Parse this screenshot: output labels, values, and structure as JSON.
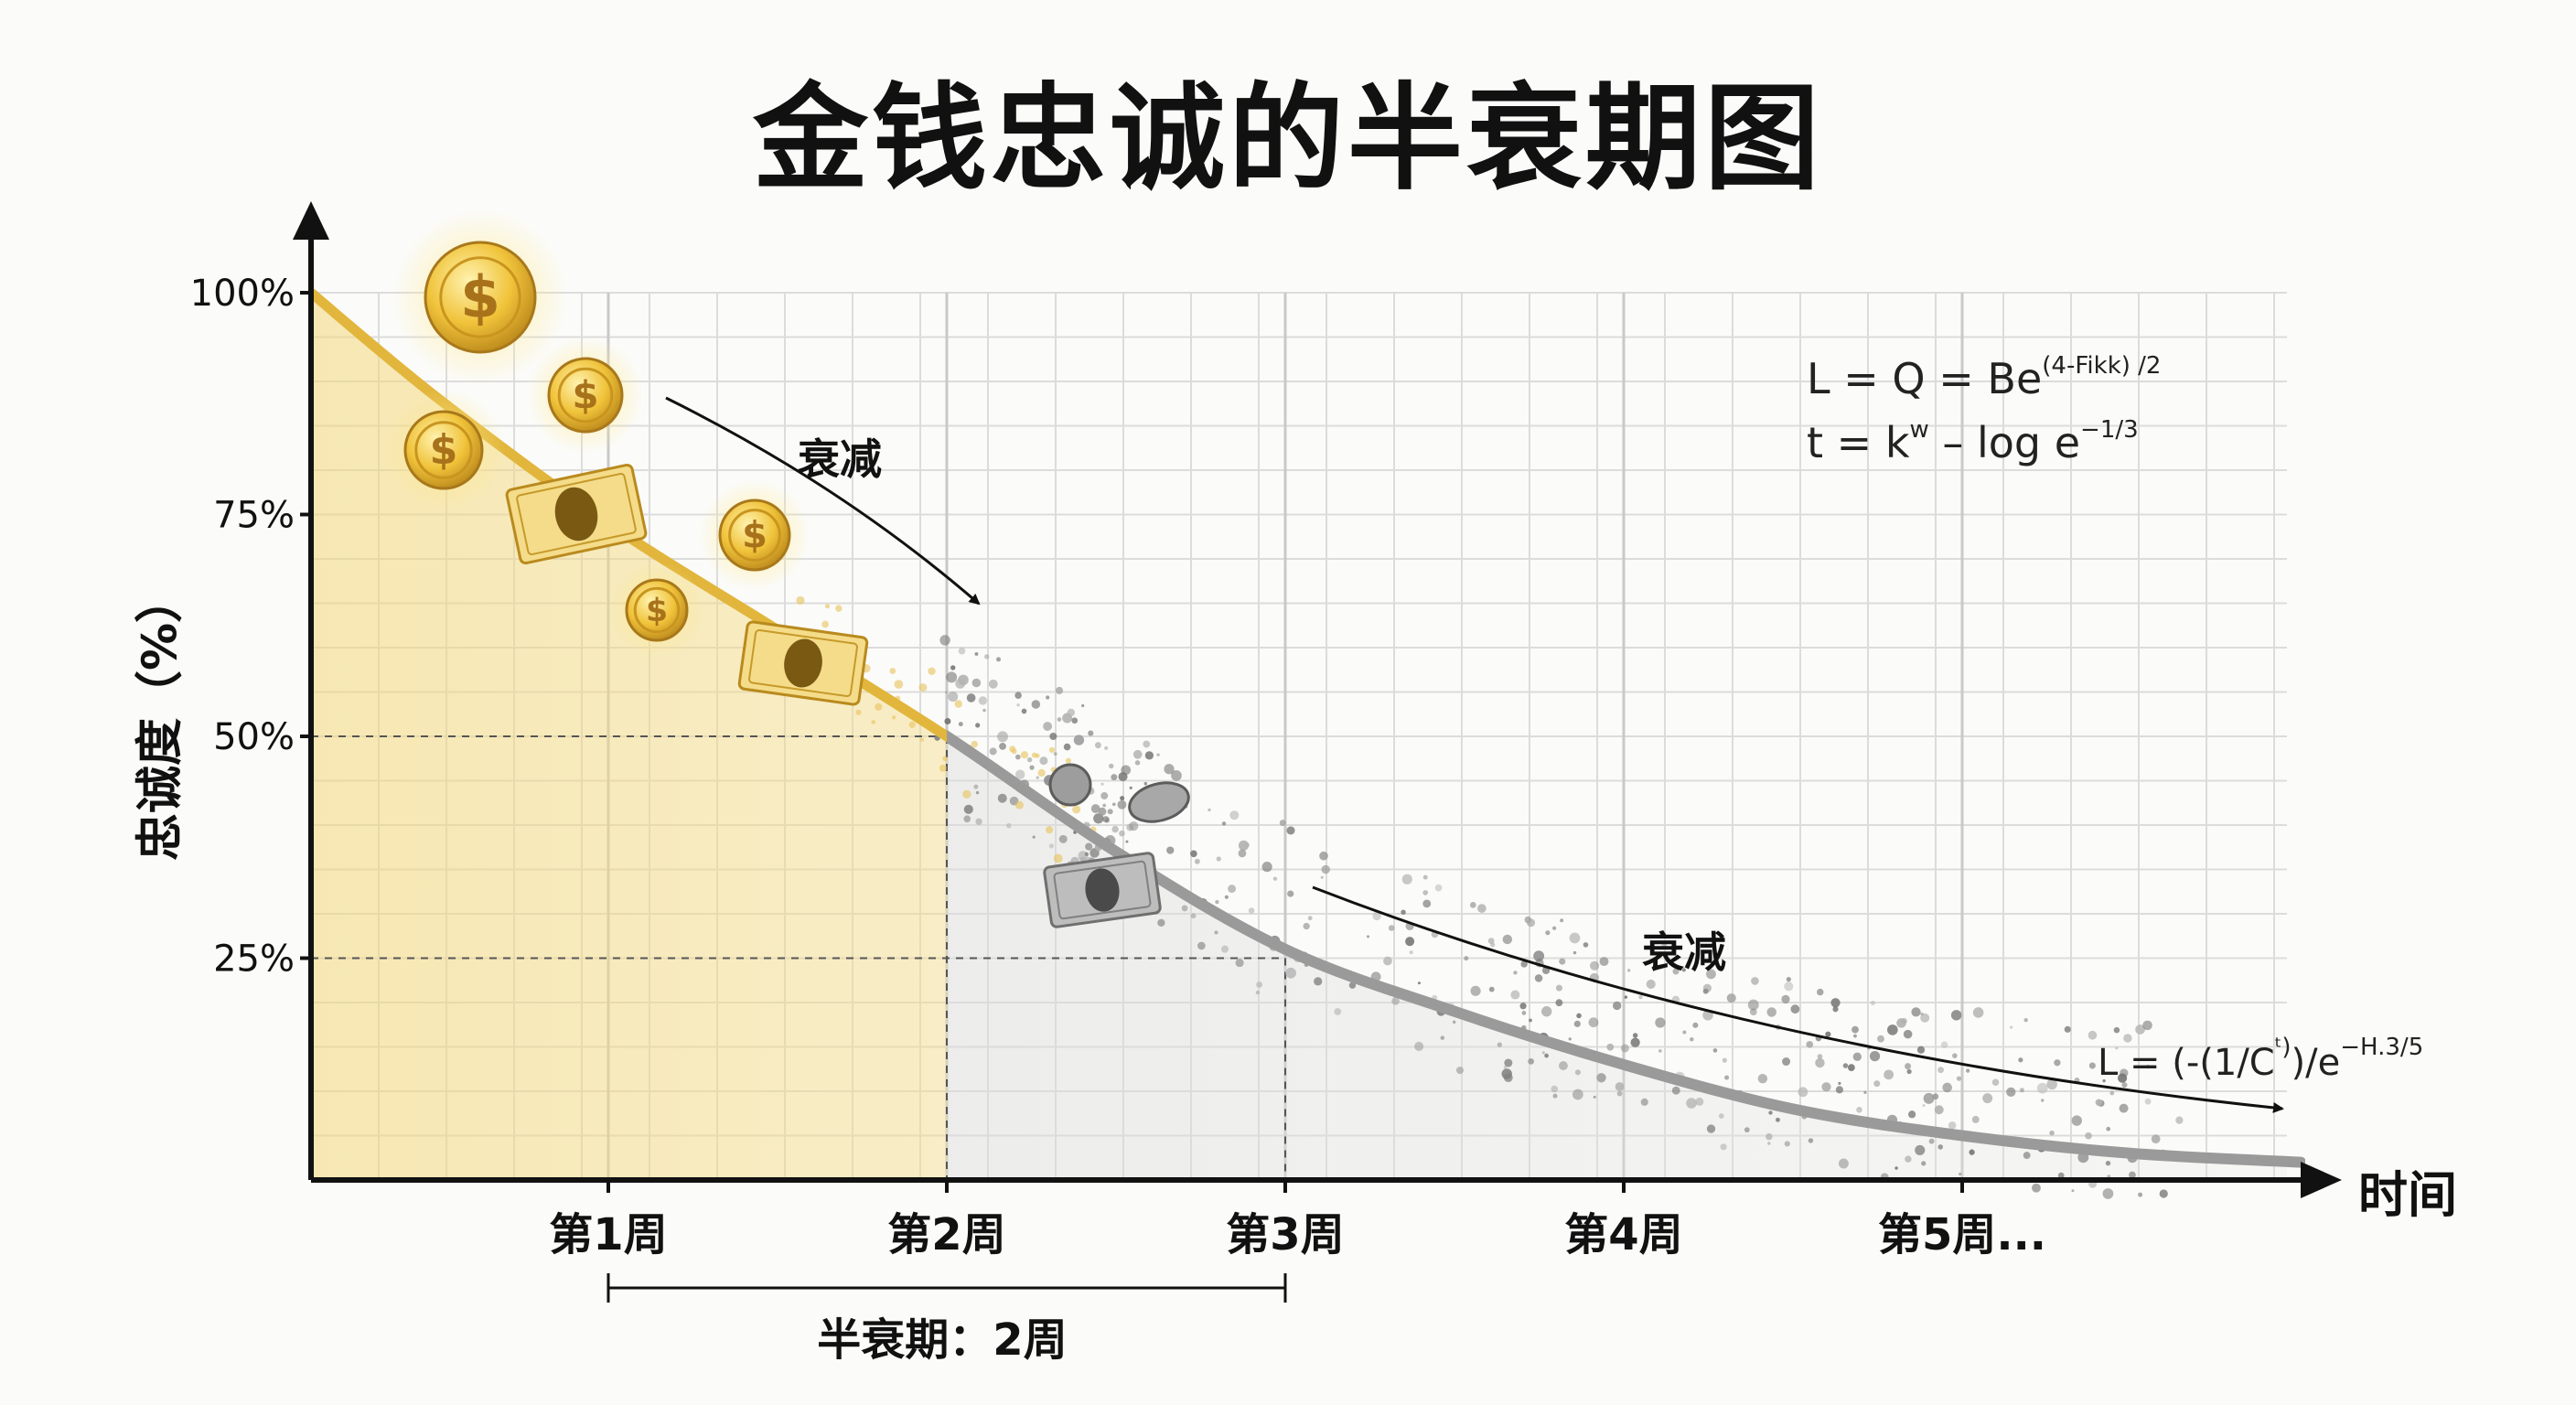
{
  "title": "金钱忠诚的半衰期图",
  "annotations": {
    "decay_upper": "衰减",
    "decay_lower": "衰减",
    "half_life": "半衰期：2周"
  },
  "formulas": {
    "f1_main": "L = Q = Be",
    "f1_sup": "(4-Fikk) /2",
    "f2_a": "t = k",
    "f2_sup1": "w",
    "f2_b": " – log e",
    "f2_sup2": "−1/3",
    "f3_main": "L = (-(1/C",
    "f3_sup1": "ᵗ)",
    "f3_b": ")/e",
    "f3_sup2": "−H.3/5"
  },
  "colors": {
    "gold": "#e2b63c",
    "gold_dark": "#c99a22",
    "gray_curve": "#9a9a9a",
    "grid": "#dcdcdc",
    "axis": "#111111"
  },
  "chart_data": {
    "type": "line",
    "title": "金钱忠诚的半衰期图",
    "xlabel": "时间",
    "ylabel": "忠诚度（%）",
    "x_ticks": [
      "第1周",
      "第2周",
      "第3周",
      "第4周",
      "第5周..."
    ],
    "y_ticks": [
      "100%",
      "75%",
      "50%",
      "25%"
    ],
    "xlim": [
      0.1,
      6
    ],
    "ylim": [
      0,
      100
    ],
    "grid": true,
    "half_life_weeks": 2,
    "reference_lines": [
      {
        "y": 50,
        "x": 2
      },
      {
        "y": 25,
        "x": 3
      }
    ],
    "series": [
      {
        "x": [
          0.1,
          0.5,
          1,
          1.5,
          2,
          2.5,
          3,
          3.5,
          4,
          4.5,
          5,
          5.5,
          6
        ],
        "y": [
          100,
          88,
          74,
          62,
          50,
          37,
          26,
          19,
          13,
          8,
          5,
          3,
          2
        ]
      }
    ]
  }
}
